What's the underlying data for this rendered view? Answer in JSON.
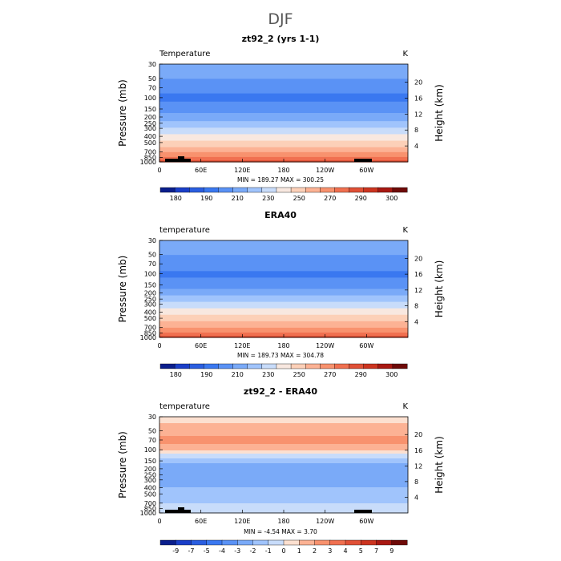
{
  "main_title": "DJF",
  "chart_data": [
    {
      "type": "heatmap",
      "title": "zt92_2 (yrs 1-1)",
      "left_label": "Temperature",
      "units": "K",
      "ylabel": "Pressure (mb)",
      "ylabel_right": "Height (km)",
      "pressure_ticks": [
        "30",
        "50",
        "70",
        "100",
        "150",
        "200",
        "250",
        "300",
        "400",
        "500",
        "700",
        "850",
        "1000"
      ],
      "height_ticks": [
        "20",
        "16",
        "12",
        "8",
        "4"
      ],
      "x_ticks": [
        "0",
        "60E",
        "120E",
        "180",
        "120W",
        "60W"
      ],
      "stats": "MIN =  189.27   MAX =  300.25",
      "colorbar_labels": [
        "180",
        "190",
        "210",
        "230",
        "250",
        "270",
        "290",
        "300"
      ],
      "profile": [
        [
          30,
          220
        ],
        [
          50,
          210
        ],
        [
          70,
          203
        ],
        [
          100,
          197
        ],
        [
          150,
          205
        ],
        [
          200,
          215
        ],
        [
          250,
          224
        ],
        [
          300,
          232
        ],
        [
          400,
          244
        ],
        [
          500,
          254
        ],
        [
          700,
          268
        ],
        [
          850,
          280
        ],
        [
          1000,
          294
        ]
      ]
    },
    {
      "type": "heatmap",
      "title": "ERA40",
      "left_label": "temperature",
      "units": "K",
      "ylabel": "Pressure (mb)",
      "ylabel_right": "Height (km)",
      "pressure_ticks": [
        "30",
        "50",
        "70",
        "100",
        "150",
        "200",
        "250",
        "300",
        "400",
        "500",
        "700",
        "850",
        "1000"
      ],
      "height_ticks": [
        "20",
        "16",
        "12",
        "8",
        "4"
      ],
      "x_ticks": [
        "0",
        "60E",
        "120E",
        "180",
        "120W",
        "60W"
      ],
      "stats": "MIN =  189.73   MAX =  304.78",
      "colorbar_labels": [
        "180",
        "190",
        "210",
        "230",
        "250",
        "270",
        "290",
        "300"
      ],
      "profile": [
        [
          30,
          218
        ],
        [
          50,
          210
        ],
        [
          70,
          204
        ],
        [
          100,
          198
        ],
        [
          150,
          205
        ],
        [
          200,
          216
        ],
        [
          250,
          226
        ],
        [
          300,
          234
        ],
        [
          400,
          246
        ],
        [
          500,
          256
        ],
        [
          700,
          270
        ],
        [
          850,
          282
        ],
        [
          1000,
          296
        ]
      ]
    },
    {
      "type": "heatmap",
      "title": "zt92_2 - ERA40",
      "left_label": "temperature",
      "units": "K",
      "ylabel": "Pressure (mb)",
      "ylabel_right": "Height (km)",
      "pressure_ticks": [
        "30",
        "50",
        "70",
        "100",
        "150",
        "200",
        "250",
        "300",
        "400",
        "500",
        "700",
        "850",
        "1000"
      ],
      "height_ticks": [
        "20",
        "16",
        "12",
        "8",
        "4"
      ],
      "x_ticks": [
        "0",
        "60E",
        "120E",
        "180",
        "120W",
        "60W"
      ],
      "stats": "MIN =  -4.54   MAX =   3.70",
      "colorbar_labels": [
        "-9",
        "-7",
        "-5",
        "-4",
        "-3",
        "-2",
        "-1",
        "0",
        "1",
        "2",
        "3",
        "4",
        "5",
        "7",
        "9"
      ],
      "profile": [
        [
          30,
          0.5
        ],
        [
          50,
          1.5
        ],
        [
          70,
          2.5
        ],
        [
          100,
          1.0
        ],
        [
          150,
          -1.5
        ],
        [
          200,
          -3.0
        ],
        [
          250,
          -3.0
        ],
        [
          300,
          -2.5
        ],
        [
          400,
          -2.0
        ],
        [
          500,
          -1.5
        ],
        [
          700,
          -1.0
        ],
        [
          850,
          -0.5
        ],
        [
          1000,
          -0.5
        ]
      ]
    }
  ],
  "abs_colors": [
    "#0a1e8c",
    "#1a3ec8",
    "#2a5ee0",
    "#3a78f0",
    "#5a92f5",
    "#7aaaf8",
    "#a0c4fc",
    "#c8dcfa",
    "#f8e8e0",
    "#fcd0b8",
    "#fcb294",
    "#f8926e",
    "#f07050",
    "#e05036",
    "#cc3420",
    "#a81812",
    "#6e0a08"
  ],
  "diff_colors": [
    "#0a1e8c",
    "#1a3ec8",
    "#2a5ee0",
    "#3a78f0",
    "#5a92f5",
    "#7aaaf8",
    "#a0c4fc",
    "#c8dcfa",
    "#fce0d0",
    "#fcb294",
    "#f8926e",
    "#f07050",
    "#e05036",
    "#cc3420",
    "#a81812",
    "#6e0a08"
  ]
}
